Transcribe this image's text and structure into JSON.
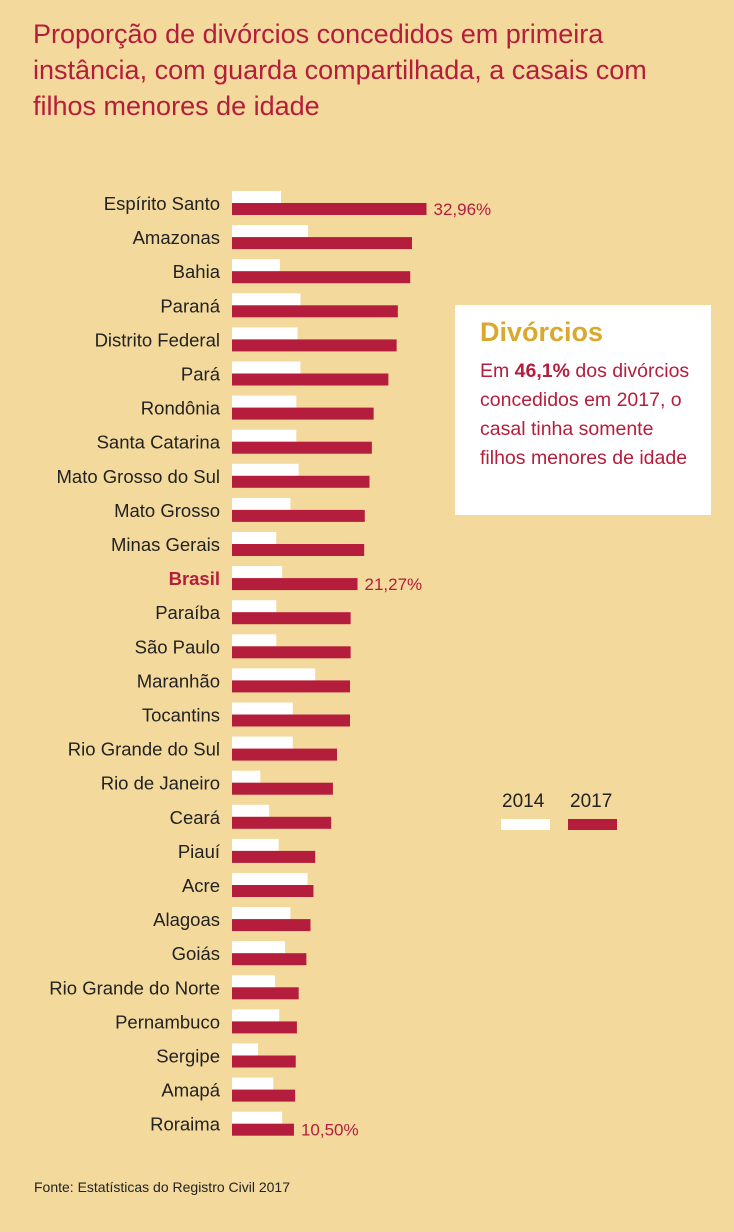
{
  "title": "Proporção de divórcios concedidos em primeira instância, com guarda compartilhada, a casais com filhos menores de idade",
  "colors": {
    "background": "#f3d99c",
    "series_2014": "#ffffff",
    "series_2017": "#b51d3d",
    "title": "#b51d3d",
    "highlight": "#d9a82c"
  },
  "note": {
    "heading": "Divórcios",
    "text_before": "Em ",
    "value": "46,1%",
    "text_after": " dos divórcios concedidos em 2017, o casal tinha somente filhos menores de idade"
  },
  "legend": {
    "label_2014": "2014",
    "label_2017": "2017"
  },
  "source": "Fonte: Estatísticas do Registro Civil 2017",
  "chart_data": {
    "type": "bar",
    "orientation": "horizontal",
    "categories": [
      "Espírito Santo",
      "Amazonas",
      "Bahia",
      "Paraná",
      "Distrito Federal",
      "Pará",
      "Rondônia",
      "Santa Catarina",
      "Mato Grosso do Sul",
      "Mato Grosso",
      "Minas Gerais",
      "Brasil",
      "Paraíba",
      "São Paulo",
      "Maranhão",
      "Tocantins",
      "Rio Grande do Sul",
      "Rio de Janeiro",
      "Ceará",
      "Piauí",
      "Acre",
      "Alagoas",
      "Goiás",
      "Rio Grande do Norte",
      "Pernambuco",
      "Sergipe",
      "Amapá",
      "Roraima"
    ],
    "highlight_category": "Brasil",
    "series": [
      {
        "name": "2014",
        "values": [
          8.3,
          12.9,
          8.1,
          11.6,
          11.1,
          11.6,
          10.9,
          10.9,
          11.3,
          9.9,
          7.5,
          8.5,
          7.5,
          7.5,
          14.1,
          10.3,
          10.3,
          4.8,
          6.3,
          7.9,
          12.8,
          9.9,
          9.0,
          7.3,
          8.0,
          4.4,
          7.0,
          8.5
        ]
      },
      {
        "name": "2017",
        "values": [
          32.96,
          30.5,
          30.2,
          28.1,
          27.9,
          26.5,
          24.0,
          23.7,
          23.3,
          22.5,
          22.4,
          21.27,
          20.1,
          20.1,
          20.0,
          20.0,
          17.8,
          17.1,
          16.8,
          14.1,
          13.8,
          13.3,
          12.6,
          11.3,
          11.0,
          10.8,
          10.7,
          10.5
        ]
      }
    ],
    "value_labels": [
      {
        "category": "Espírito Santo",
        "text": "32,96%"
      },
      {
        "category": "Brasil",
        "text": "21,27%"
      },
      {
        "category": "Roraima",
        "text": "10,50%"
      }
    ],
    "xlim": [
      0,
      35
    ],
    "grid": false,
    "legend_position": "right"
  }
}
